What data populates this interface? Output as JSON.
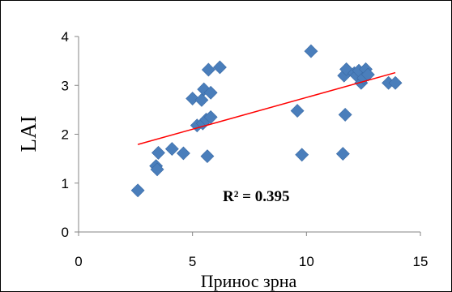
{
  "chart_data": {
    "type": "scatter",
    "title": "",
    "xlabel": "Принос зрна",
    "ylabel": "LAI",
    "xlim": [
      0,
      15
    ],
    "ylim": [
      0,
      4
    ],
    "x_ticks": [
      "0",
      "5",
      "10",
      "15"
    ],
    "y_ticks": [
      "0",
      "1",
      "2",
      "3",
      "4"
    ],
    "grid": false,
    "legend": "none",
    "marker": "diamond",
    "marker_color": "#4a7ebb",
    "trendline": {
      "x": [
        2.6,
        13.9
      ],
      "y": [
        1.79,
        3.26
      ],
      "color": "#ff0000"
    },
    "annotation": "R² = 0.395",
    "series": [
      {
        "values": [
          {
            "x": 2.6,
            "y": 0.85
          },
          {
            "x": 3.4,
            "y": 1.35
          },
          {
            "x": 3.45,
            "y": 1.28
          },
          {
            "x": 3.5,
            "y": 1.62
          },
          {
            "x": 4.1,
            "y": 1.7
          },
          {
            "x": 4.6,
            "y": 1.61
          },
          {
            "x": 5.0,
            "y": 2.73
          },
          {
            "x": 5.2,
            "y": 2.18
          },
          {
            "x": 5.4,
            "y": 2.7
          },
          {
            "x": 5.45,
            "y": 2.22
          },
          {
            "x": 5.5,
            "y": 2.92
          },
          {
            "x": 5.6,
            "y": 2.3
          },
          {
            "x": 5.65,
            "y": 1.55
          },
          {
            "x": 5.7,
            "y": 3.32
          },
          {
            "x": 5.8,
            "y": 2.85
          },
          {
            "x": 5.8,
            "y": 2.35
          },
          {
            "x": 6.2,
            "y": 3.37
          },
          {
            "x": 9.6,
            "y": 2.48
          },
          {
            "x": 9.8,
            "y": 1.58
          },
          {
            "x": 10.2,
            "y": 3.7
          },
          {
            "x": 11.6,
            "y": 1.6
          },
          {
            "x": 11.65,
            "y": 3.2
          },
          {
            "x": 11.7,
            "y": 2.4
          },
          {
            "x": 11.75,
            "y": 3.33
          },
          {
            "x": 12.1,
            "y": 3.25
          },
          {
            "x": 12.2,
            "y": 3.2
          },
          {
            "x": 12.3,
            "y": 3.3
          },
          {
            "x": 12.4,
            "y": 3.05
          },
          {
            "x": 12.5,
            "y": 3.15
          },
          {
            "x": 12.6,
            "y": 3.33
          },
          {
            "x": 12.7,
            "y": 3.22
          },
          {
            "x": 13.6,
            "y": 3.05
          },
          {
            "x": 13.9,
            "y": 3.05
          }
        ]
      }
    ]
  }
}
